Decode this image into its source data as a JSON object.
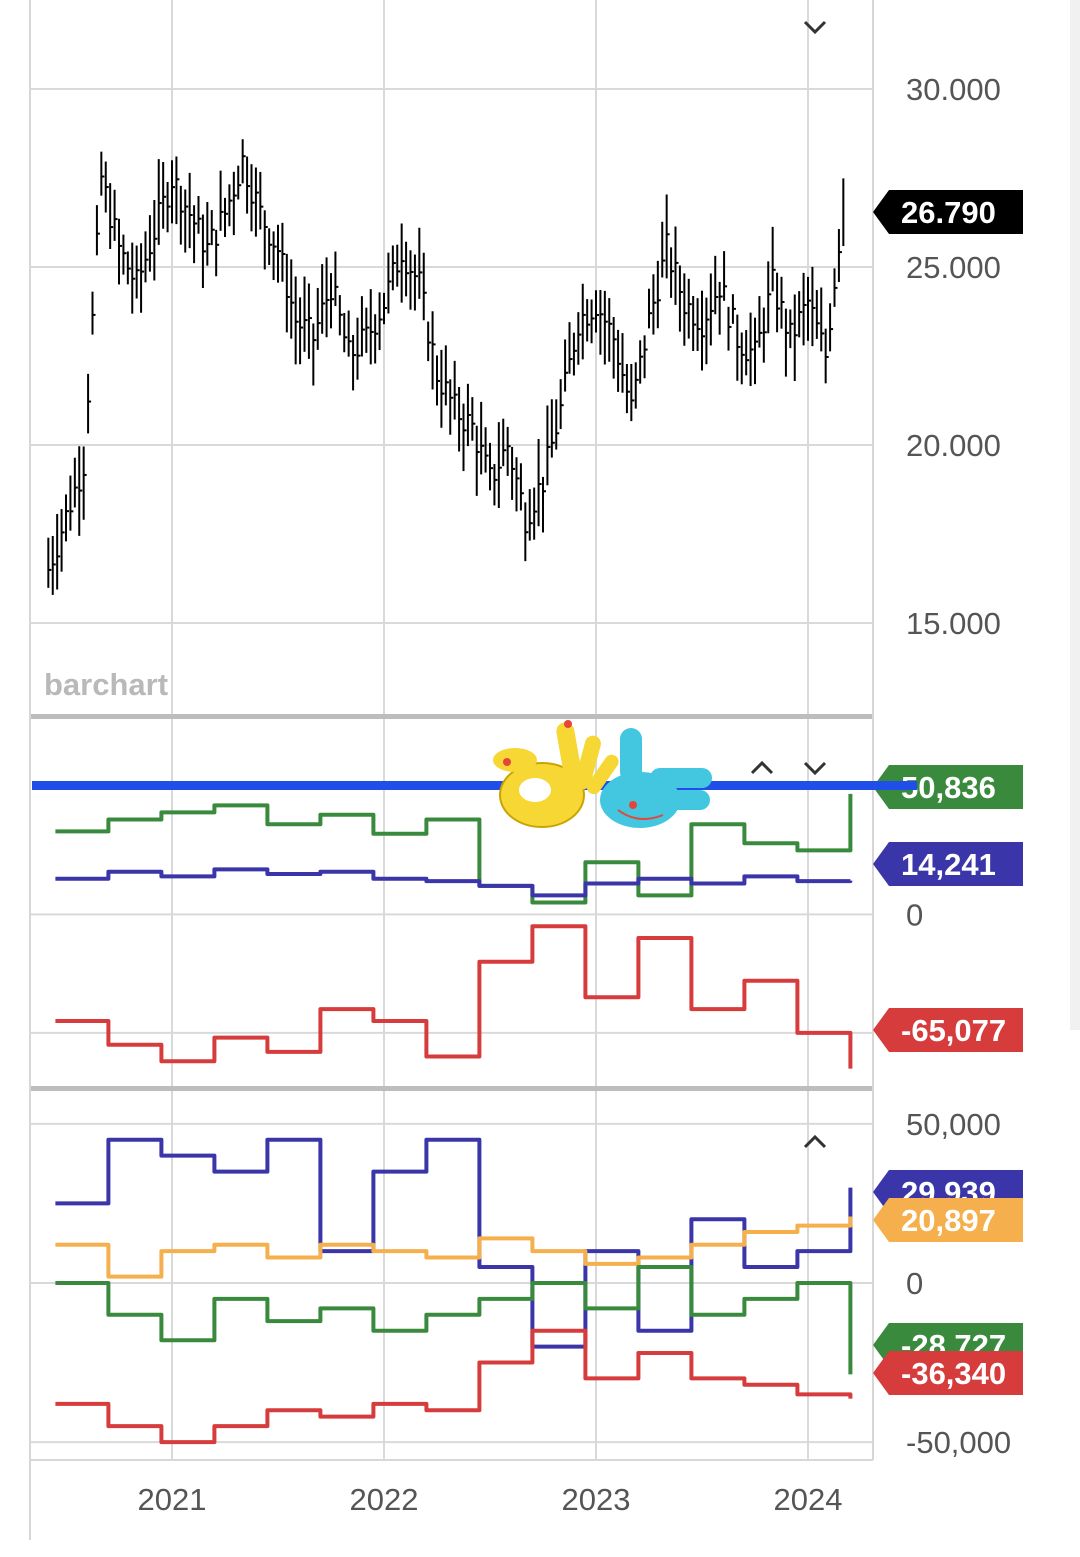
{
  "logo_text": "barchart",
  "colors": {
    "green": "#3a8a3e",
    "navy": "#3a35a8",
    "red": "#d63c3c",
    "orange": "#f5b04d",
    "blue_stroke": "#1f4fe8",
    "price": "#000000"
  },
  "x_axis": {
    "ticks": [
      "2021",
      "2022",
      "2023",
      "2024"
    ]
  },
  "controls": {
    "top_collapse": "chevron-down-icon",
    "mid_up": "chevron-up-icon",
    "mid_down": "chevron-down-icon",
    "bottom_up": "chevron-up-icon"
  },
  "chart_data": [
    {
      "type": "bar",
      "subtype": "ohlc-weekly",
      "ylim": [
        12500,
        32500
      ],
      "y_ticks": [
        "30.000",
        "25.000",
        "20.000",
        "15.000"
      ],
      "last_value_label": "26.790",
      "series": [
        {
          "name": "",
          "x": [
            "2020-06",
            "2020-07",
            "2020-08",
            "2020-09",
            "2020-10",
            "2020-11",
            "2020-12",
            "2021-01",
            "2021-02",
            "2021-03",
            "2021-04",
            "2021-05",
            "2021-06",
            "2021-07",
            "2021-08",
            "2021-09",
            "2021-10",
            "2021-11",
            "2021-12",
            "2022-01",
            "2022-02",
            "2022-03",
            "2022-04",
            "2022-05",
            "2022-06",
            "2022-07",
            "2022-08",
            "2022-09",
            "2022-10",
            "2022-11",
            "2022-12",
            "2023-01",
            "2023-02",
            "2023-03",
            "2023-04",
            "2023-05",
            "2023-06",
            "2023-07",
            "2023-08",
            "2023-09",
            "2023-10",
            "2023-11",
            "2023-12",
            "2024-01",
            "2024-02",
            "2024-03"
          ],
          "values": [
            16500,
            18000,
            19500,
            27500,
            25500,
            24500,
            26000,
            27500,
            26500,
            25500,
            26500,
            28000,
            26500,
            25500,
            23500,
            23000,
            24500,
            22500,
            23000,
            24000,
            25500,
            24500,
            22000,
            21000,
            20500,
            19000,
            20000,
            18000,
            19000,
            21000,
            23500,
            24000,
            23000,
            21000,
            23500,
            25500,
            24000,
            23500,
            24500,
            23000,
            22500,
            24500,
            23000,
            24000,
            22500,
            26790
          ]
        }
      ]
    },
    {
      "type": "line",
      "ylim": [
        -72000,
        82000
      ],
      "y_ticks": [
        "0",
        "-50,000"
      ],
      "series": [
        {
          "name": "",
          "color": "#3a8a3e",
          "last_label": "50,836",
          "x": [
            2020.45,
            2020.7,
            2020.95,
            2021.2,
            2021.45,
            2021.7,
            2021.95,
            2022.2,
            2022.45,
            2022.7,
            2022.95,
            2023.2,
            2023.45,
            2023.7,
            2023.95,
            2024.2
          ],
          "values": [
            35000,
            40000,
            43000,
            46000,
            38000,
            42000,
            34000,
            40000,
            12000,
            5000,
            22000,
            8000,
            38000,
            30000,
            27000,
            50836
          ]
        },
        {
          "name": "",
          "color": "#3a35a8",
          "last_label": "14,241",
          "x": [
            2020.45,
            2020.7,
            2020.95,
            2021.2,
            2021.45,
            2021.7,
            2021.95,
            2022.2,
            2022.45,
            2022.7,
            2022.95,
            2023.2,
            2023.45,
            2023.7,
            2023.95,
            2024.2
          ],
          "values": [
            15000,
            18000,
            16000,
            19000,
            17000,
            18000,
            15000,
            14000,
            12000,
            8000,
            13000,
            15000,
            13000,
            16000,
            14000,
            14241
          ]
        },
        {
          "name": "",
          "color": "#d63c3c",
          "last_label": "-65,077",
          "x": [
            2020.45,
            2020.7,
            2020.95,
            2021.2,
            2021.45,
            2021.7,
            2021.95,
            2022.2,
            2022.45,
            2022.7,
            2022.95,
            2023.2,
            2023.45,
            2023.7,
            2023.95,
            2024.2
          ],
          "values": [
            -45000,
            -55000,
            -62000,
            -52000,
            -58000,
            -40000,
            -45000,
            -60000,
            -20000,
            -5000,
            -35000,
            -10000,
            -40000,
            -28000,
            -50000,
            -65077
          ]
        }
      ]
    },
    {
      "type": "line",
      "ylim": [
        -55000,
        60000
      ],
      "y_ticks": [
        "50,000",
        "0",
        "-50,000"
      ],
      "series": [
        {
          "name": "",
          "color": "#3a35a8",
          "last_label": "29,939",
          "x": [
            2020.45,
            2020.7,
            2020.95,
            2021.2,
            2021.45,
            2021.7,
            2021.95,
            2022.2,
            2022.45,
            2022.7,
            2022.95,
            2023.2,
            2023.45,
            2023.7,
            2023.95,
            2024.2
          ],
          "values": [
            25000,
            45000,
            40000,
            35000,
            45000,
            10000,
            35000,
            45000,
            5000,
            -20000,
            10000,
            -15000,
            20000,
            5000,
            10000,
            29939
          ]
        },
        {
          "name": "",
          "color": "#f5b04d",
          "last_label": "20,897",
          "x": [
            2020.45,
            2020.7,
            2020.95,
            2021.2,
            2021.45,
            2021.7,
            2021.95,
            2022.2,
            2022.45,
            2022.7,
            2022.95,
            2023.2,
            2023.45,
            2023.7,
            2023.95,
            2024.2
          ],
          "values": [
            12000,
            2000,
            10000,
            12000,
            8000,
            12000,
            10000,
            8000,
            14000,
            10000,
            6000,
            8000,
            12000,
            16000,
            18000,
            20897
          ]
        },
        {
          "name": "",
          "color": "#3a8a3e",
          "last_label": "-28,727",
          "x": [
            2020.45,
            2020.7,
            2020.95,
            2021.2,
            2021.45,
            2021.7,
            2021.95,
            2022.2,
            2022.45,
            2022.7,
            2022.95,
            2023.2,
            2023.45,
            2023.7,
            2023.95,
            2024.2
          ],
          "values": [
            0,
            -10000,
            -18000,
            -5000,
            -12000,
            -8000,
            -15000,
            -10000,
            -5000,
            0,
            -8000,
            5000,
            -10000,
            -5000,
            0,
            -28727
          ]
        },
        {
          "name": "",
          "color": "#d63c3c",
          "last_label": "-36,340",
          "x": [
            2020.45,
            2020.7,
            2020.95,
            2021.2,
            2021.45,
            2021.7,
            2021.95,
            2022.2,
            2022.45,
            2022.7,
            2022.95,
            2023.2,
            2023.45,
            2023.7,
            2023.95,
            2024.2
          ],
          "values": [
            -38000,
            -45000,
            -50000,
            -45000,
            -40000,
            -42000,
            -38000,
            -40000,
            -25000,
            -15000,
            -30000,
            -22000,
            -30000,
            -32000,
            -35000,
            -36340
          ]
        }
      ]
    }
  ]
}
